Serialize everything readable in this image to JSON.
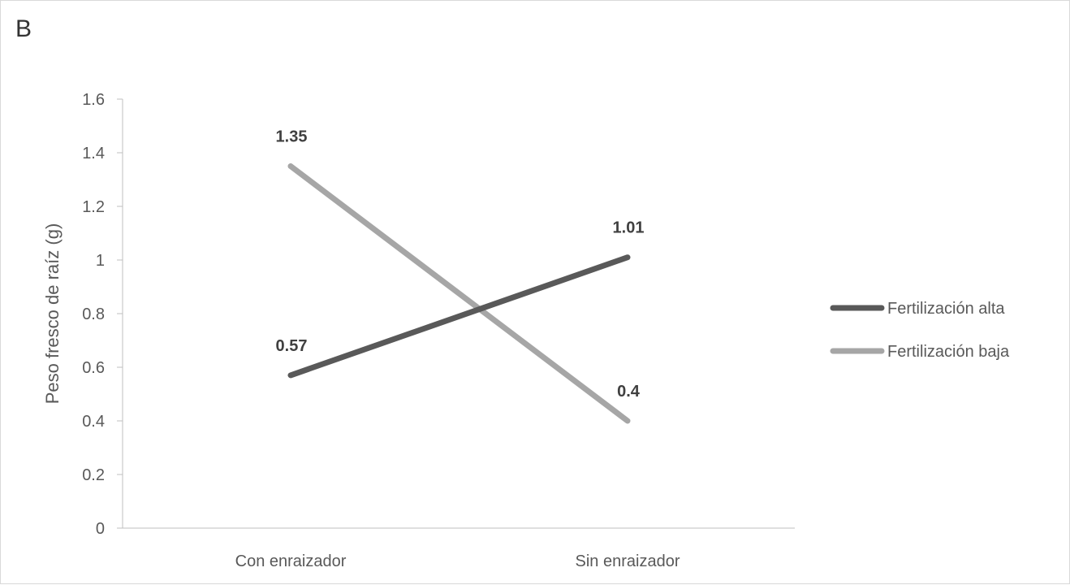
{
  "panel_label": "B",
  "chart_data": {
    "type": "line",
    "title": "",
    "xlabel": "",
    "ylabel": "Peso fresco de raíz (g)",
    "categories": [
      "Con enraizador",
      "Sin enraizador"
    ],
    "ylim": [
      0,
      1.6
    ],
    "yticks": [
      0,
      0.2,
      0.4,
      0.6,
      0.8,
      1,
      1.2,
      1.4,
      1.6
    ],
    "ytick_labels": [
      "0",
      "0.2",
      "0.4",
      "0.6",
      "0.8",
      "1",
      "1.2",
      "1.4",
      "1.6"
    ],
    "grid": false,
    "legend_position": "right",
    "series": [
      {
        "name": "Fertilización alta",
        "values": [
          0.57,
          1.01
        ],
        "labels": [
          "0.57",
          "1.01"
        ],
        "color": "#595959"
      },
      {
        "name": "Fertilización baja",
        "values": [
          1.35,
          0.4
        ],
        "labels": [
          "1.35",
          "0.4"
        ],
        "color": "#a6a6a6"
      }
    ]
  }
}
